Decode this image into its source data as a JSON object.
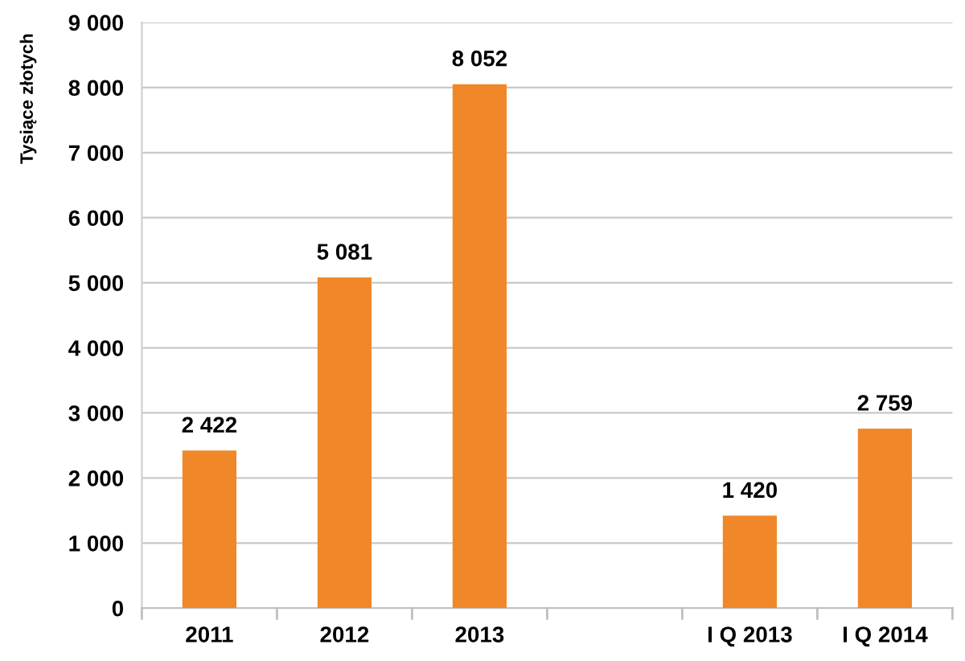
{
  "chart_data": {
    "type": "bar",
    "ylabel": "Tysiące złotych",
    "categories": [
      "2011",
      "2012",
      "2013",
      null,
      "I Q 2013",
      "I Q 2014"
    ],
    "values": [
      2422,
      5081,
      8052,
      null,
      1420,
      2759
    ],
    "value_labels": [
      "2 422",
      "5 081",
      "8 052",
      null,
      "1 420",
      "2 759"
    ],
    "color": "#f0882a",
    "ylim": [
      0,
      9000
    ],
    "yticks": [
      {
        "value": 0,
        "label": "0"
      },
      {
        "value": 1000,
        "label": "1 000"
      },
      {
        "value": 2000,
        "label": "2 000"
      },
      {
        "value": 3000,
        "label": "3 000"
      },
      {
        "value": 4000,
        "label": "4 000"
      },
      {
        "value": 5000,
        "label": "5 000"
      },
      {
        "value": 6000,
        "label": "6 000"
      },
      {
        "value": 7000,
        "label": "7 000"
      },
      {
        "value": 8000,
        "label": "8 000"
      },
      {
        "value": 9000,
        "label": "9 000"
      }
    ],
    "grid": "y",
    "legend": false
  }
}
